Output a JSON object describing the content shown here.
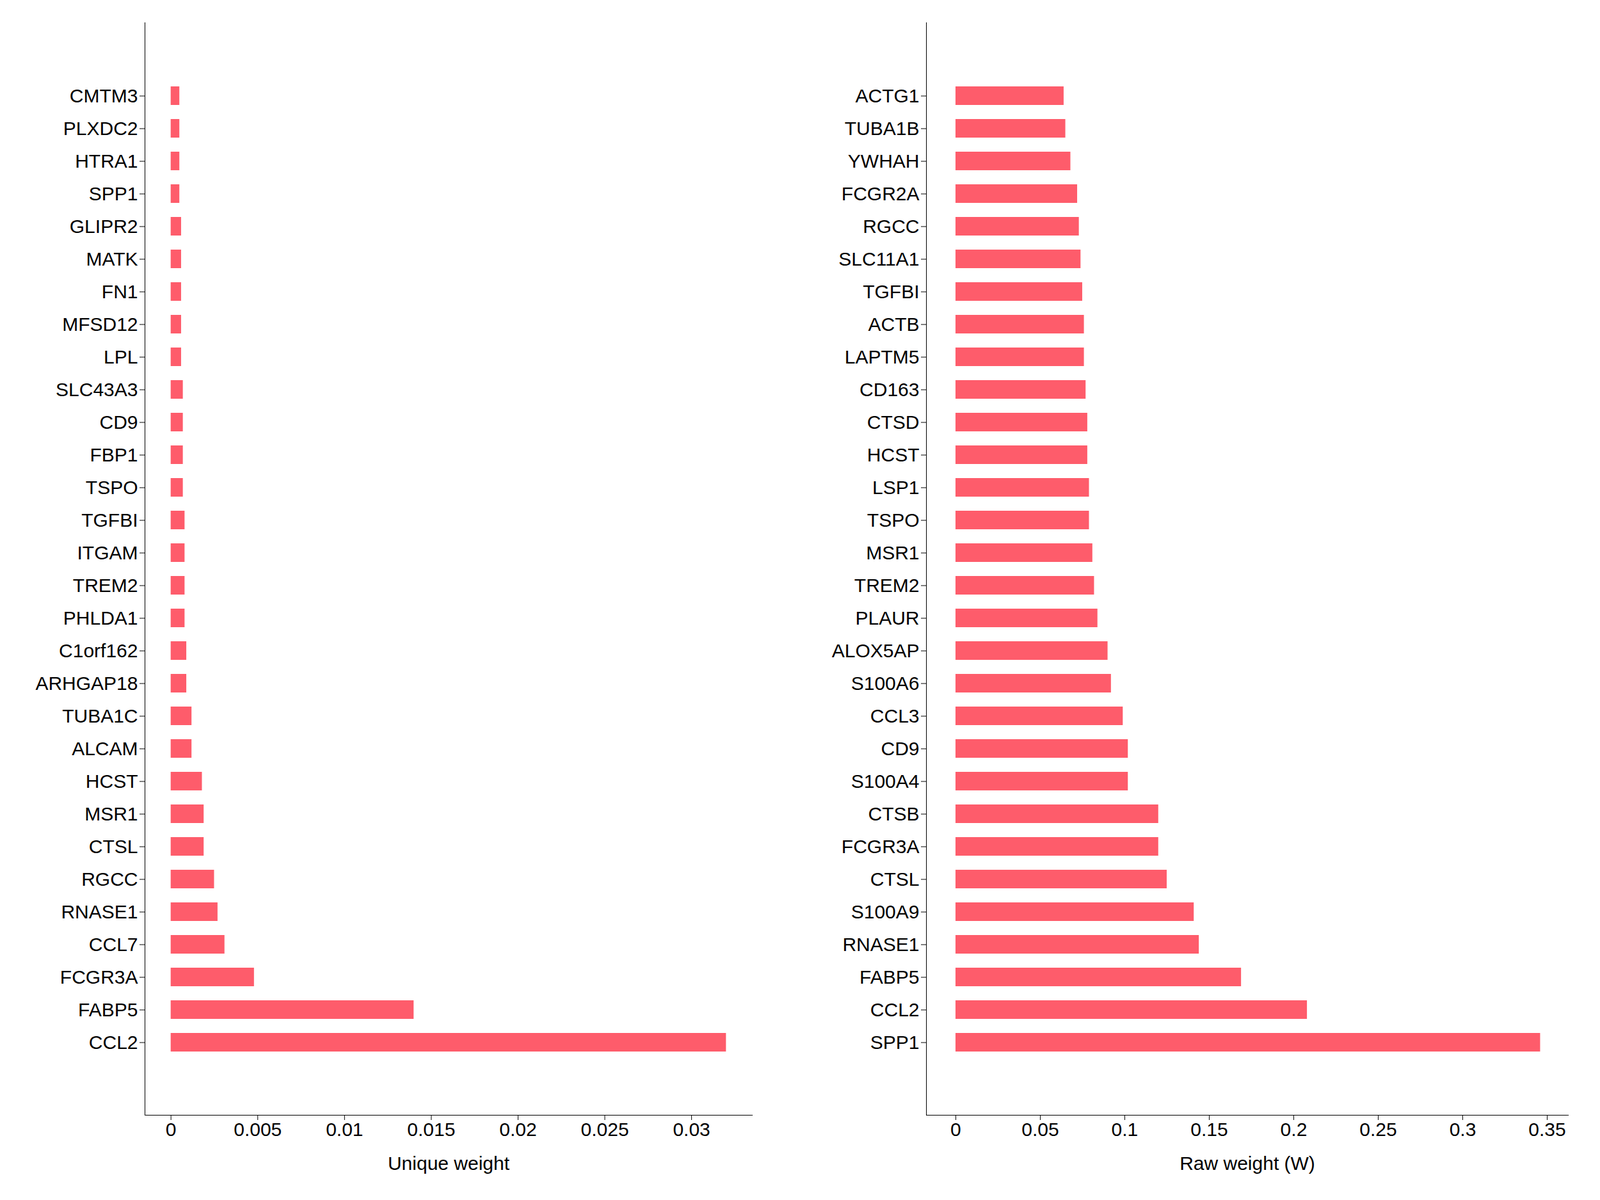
{
  "chart_data": [
    {
      "type": "bar",
      "orientation": "horizontal",
      "x_label": "Unique weight",
      "color": "#fe5c6b",
      "categories": [
        "CMTM3",
        "PLXDC2",
        "HTRA1",
        "SPP1",
        "GLIPR2",
        "MATK",
        "FN1",
        "MFSD12",
        "LPL",
        "SLC43A3",
        "CD9",
        "FBP1",
        "TSPO",
        "TGFBI",
        "ITGAM",
        "TREM2",
        "PHLDA1",
        "C1orf162",
        "ARHGAP18",
        "TUBA1C",
        "ALCAM",
        "HCST",
        "MSR1",
        "CTSL",
        "RGCC",
        "RNASE1",
        "CCL7",
        "FCGR3A",
        "FABP5",
        "CCL2"
      ],
      "values": [
        0.0005,
        0.0005,
        0.0005,
        0.0005,
        0.0006,
        0.0006,
        0.0006,
        0.0006,
        0.0006,
        0.0007,
        0.0007,
        0.0007,
        0.0007,
        0.0008,
        0.0008,
        0.0008,
        0.0008,
        0.0009,
        0.0009,
        0.0012,
        0.0012,
        0.0018,
        0.0019,
        0.0019,
        0.0025,
        0.0027,
        0.0031,
        0.0048,
        0.014,
        0.032
      ],
      "xlim": [
        -0.0015,
        0.0335
      ],
      "xticks": [
        0,
        0.005,
        0.01,
        0.015,
        0.02,
        0.025,
        0.03
      ],
      "grid": false
    },
    {
      "type": "bar",
      "orientation": "horizontal",
      "x_label": "Raw weight (W)",
      "color": "#fe5c6b",
      "categories": [
        "ACTG1",
        "TUBA1B",
        "YWHAH",
        "FCGR2A",
        "RGCC",
        "SLC11A1",
        "TGFBI",
        "ACTB",
        "LAPTM5",
        "CD163",
        "CTSD",
        "HCST",
        "LSP1",
        "TSPO",
        "MSR1",
        "TREM2",
        "PLAUR",
        "ALOX5AP",
        "S100A6",
        "CCL3",
        "CD9",
        "S100A4",
        "CTSB",
        "FCGR3A",
        "CTSL",
        "S100A9",
        "RNASE1",
        "FABP5",
        "CCL2",
        "SPP1"
      ],
      "values": [
        0.064,
        0.065,
        0.068,
        0.072,
        0.073,
        0.074,
        0.075,
        0.076,
        0.076,
        0.077,
        0.078,
        0.078,
        0.079,
        0.079,
        0.081,
        0.082,
        0.084,
        0.09,
        0.092,
        0.099,
        0.102,
        0.102,
        0.12,
        0.12,
        0.125,
        0.141,
        0.144,
        0.169,
        0.208,
        0.346
      ],
      "xlim": [
        -0.0174,
        0.3625
      ],
      "xticks": [
        0,
        0.05,
        0.1,
        0.15,
        0.2,
        0.25,
        0.3,
        0.35
      ],
      "grid": false
    }
  ]
}
